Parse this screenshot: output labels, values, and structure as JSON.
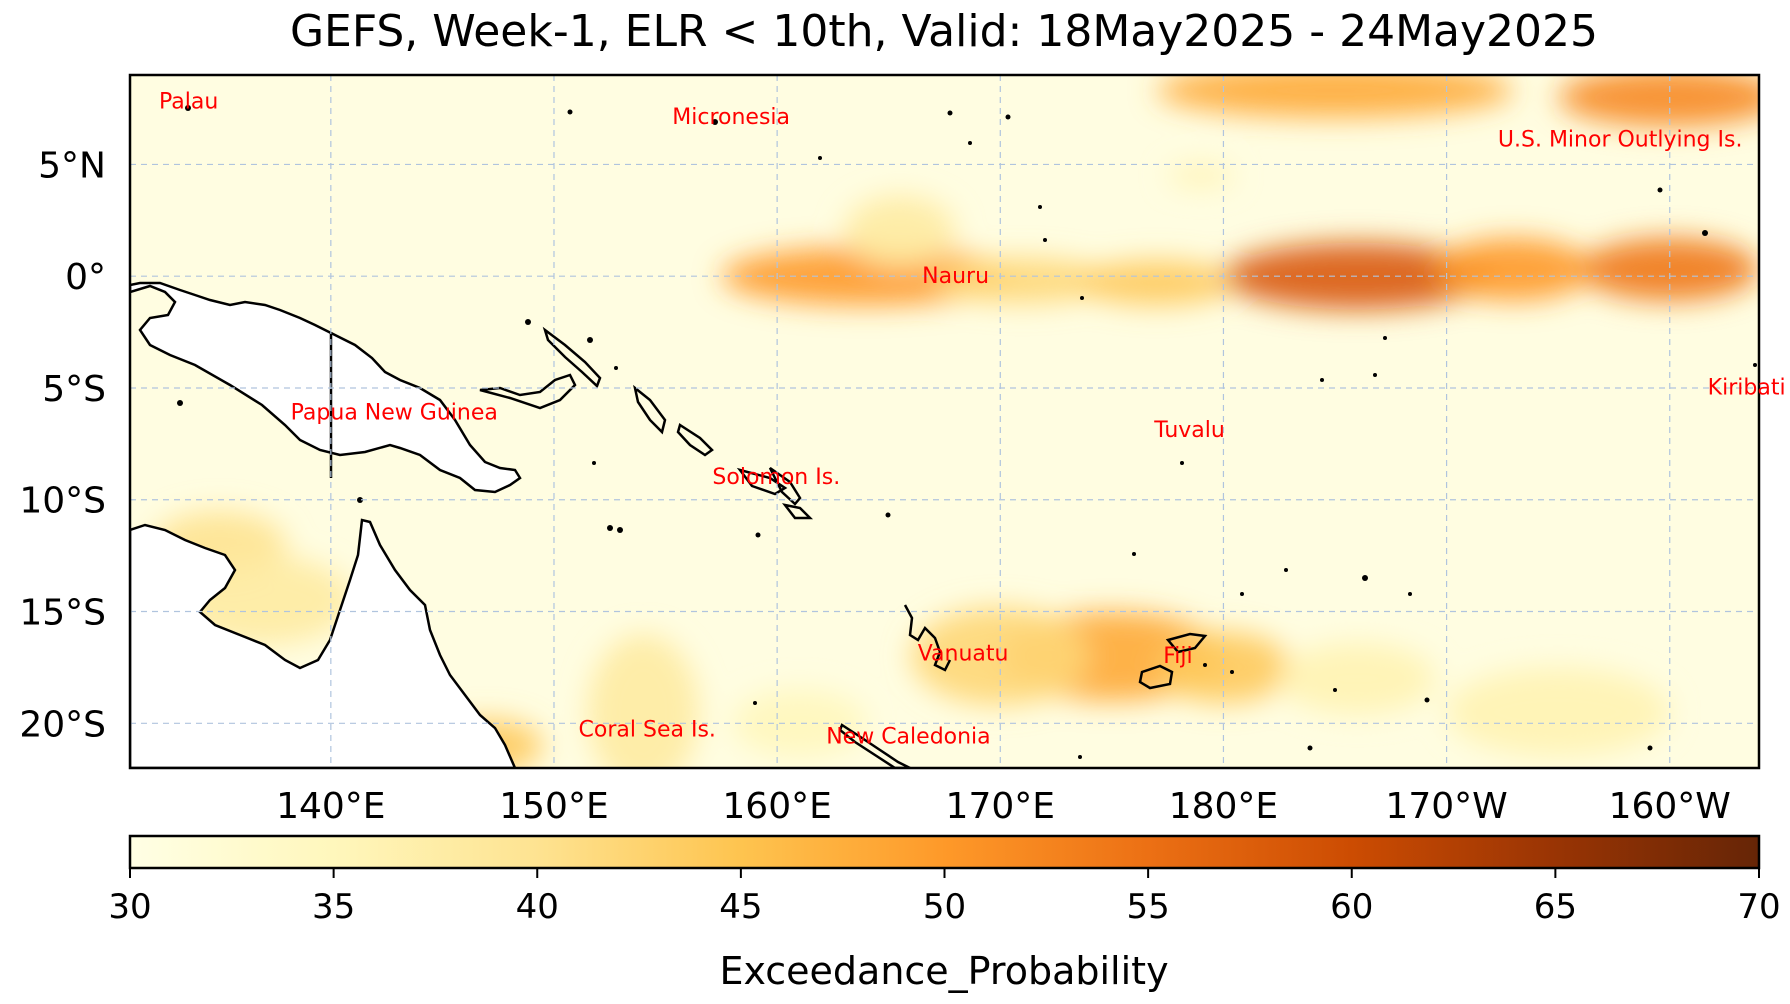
{
  "title": "GEFS, Week-1, ELR < 10th, Valid: 18May2025 - 24May2025",
  "map": {
    "extent": {
      "lon_min": 131,
      "lon_max": 204,
      "lat_min": -22,
      "lat_max": 9
    },
    "lat_ticks": [
      {
        "value": 5,
        "label": "5°N"
      },
      {
        "value": 0,
        "label": "0°"
      },
      {
        "value": -5,
        "label": "5°S"
      },
      {
        "value": -10,
        "label": "10°S"
      },
      {
        "value": -15,
        "label": "15°S"
      },
      {
        "value": -20,
        "label": "20°S"
      }
    ],
    "lon_ticks": [
      {
        "value": 140,
        "label": "140°E"
      },
      {
        "value": 150,
        "label": "150°E"
      },
      {
        "value": 160,
        "label": "160°E"
      },
      {
        "value": 170,
        "label": "170°E"
      },
      {
        "value": 180,
        "label": "180°E"
      },
      {
        "value": 190,
        "label": "170°W"
      },
      {
        "value": 200,
        "label": "160°W"
      }
    ],
    "gridlines": true,
    "gridline_color": "#b0c4de",
    "land_color": "#ffffff",
    "background_color": "#fffde1",
    "places": [
      {
        "name": "Palau",
        "lon": 132.3,
        "lat": 7.5
      },
      {
        "name": "Micronesia",
        "lon": 155.3,
        "lat": 6.8
      },
      {
        "name": "U.S. Minor Outlying Is.",
        "lon": 192.3,
        "lat": 5.8
      },
      {
        "name": "Nauru",
        "lon": 166.5,
        "lat": -0.3
      },
      {
        "name": "Kiribati",
        "lon": 201.7,
        "lat": -5.3
      },
      {
        "name": "Papua New Guinea",
        "lon": 138.2,
        "lat": -6.4
      },
      {
        "name": "Tuvalu",
        "lon": 176.9,
        "lat": -7.2
      },
      {
        "name": "Solomon Is.",
        "lon": 157.1,
        "lat": -9.3
      },
      {
        "name": "Vanuatu",
        "lon": 166.3,
        "lat": -17.2
      },
      {
        "name": "Fiji",
        "lon": 177.3,
        "lat": -17.3
      },
      {
        "name": "Coral Sea Is.",
        "lon": 151.1,
        "lat": -20.6
      },
      {
        "name": "New Caledonia",
        "lon": 162.2,
        "lat": -20.9
      }
    ],
    "probability_bands": [
      {
        "lon": 164.0,
        "lat": 0.0,
        "rlon": 6.5,
        "rlat": 1.3,
        "value": 50
      },
      {
        "lon": 171.0,
        "lat": -0.2,
        "rlon": 4.0,
        "rlat": 1.0,
        "value": 42
      },
      {
        "lon": 177.0,
        "lat": -0.3,
        "rlon": 3.5,
        "rlat": 1.0,
        "value": 44
      },
      {
        "lon": 186.0,
        "lat": 0.0,
        "rlon": 6.0,
        "rlat": 1.5,
        "value": 58
      },
      {
        "lon": 193.0,
        "lat": 0.3,
        "rlon": 3.5,
        "rlat": 1.4,
        "value": 50
      },
      {
        "lon": 200.0,
        "lat": 0.3,
        "rlon": 4.0,
        "rlat": 1.4,
        "value": 54
      },
      {
        "lon": 165.5,
        "lat": 2.0,
        "rlon": 2.5,
        "rlat": 1.6,
        "value": 38
      },
      {
        "lon": 185.0,
        "lat": 8.3,
        "rlon": 8.0,
        "rlat": 1.2,
        "value": 48
      },
      {
        "lon": 200.0,
        "lat": 8.0,
        "rlon": 5.0,
        "rlat": 1.3,
        "value": 52
      },
      {
        "lon": 179.0,
        "lat": 4.5,
        "rlon": 1.5,
        "rlat": 0.5,
        "value": 36
      },
      {
        "lon": 175.0,
        "lat": -17.0,
        "rlon": 5.0,
        "rlat": 2.0,
        "value": 48
      },
      {
        "lon": 170.0,
        "lat": -17.0,
        "rlon": 4.0,
        "rlat": 2.2,
        "value": 42
      },
      {
        "lon": 180.0,
        "lat": -17.5,
        "rlon": 3.0,
        "rlat": 1.6,
        "value": 44
      },
      {
        "lon": 186.0,
        "lat": -18.0,
        "rlon": 3.5,
        "rlat": 1.6,
        "value": 36
      },
      {
        "lon": 195.0,
        "lat": -19.5,
        "rlon": 5.0,
        "rlat": 2.0,
        "value": 36
      },
      {
        "lon": 154.0,
        "lat": -19.5,
        "rlon": 2.5,
        "rlat": 3.5,
        "value": 38
      },
      {
        "lon": 135.0,
        "lat": -12.0,
        "rlon": 3.0,
        "rlat": 1.5,
        "value": 40
      },
      {
        "lon": 137.0,
        "lat": -14.5,
        "rlon": 4.0,
        "rlat": 2.0,
        "value": 38
      },
      {
        "lon": 147.0,
        "lat": -21.0,
        "rlon": 2.5,
        "rlat": 1.2,
        "value": 44
      },
      {
        "lon": 161.0,
        "lat": -20.0,
        "rlon": 3.0,
        "rlat": 1.5,
        "value": 35
      }
    ]
  },
  "colorbar": {
    "label": "Exceedance_Probability",
    "min": 30,
    "max": 70,
    "ticks": [
      30,
      35,
      40,
      45,
      50,
      55,
      60,
      65,
      70
    ],
    "colors": [
      "#ffffe5",
      "#fff7bc",
      "#fee391",
      "#fec44f",
      "#fe9929",
      "#ec7014",
      "#cc4c02",
      "#993404",
      "#662506"
    ]
  }
}
